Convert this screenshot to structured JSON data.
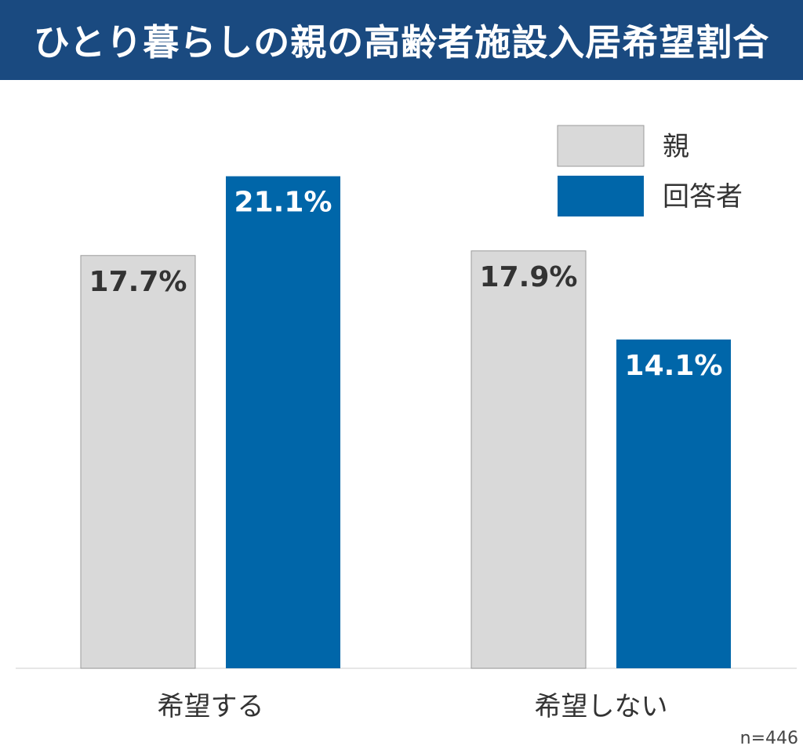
{
  "chart_data": {
    "type": "bar",
    "title": "ひとり暮らしの親の高齢者施設入居希望割合",
    "categories": [
      "希望する",
      "希望しない"
    ],
    "series": [
      {
        "name": "親",
        "values": [
          17.7,
          17.9
        ],
        "color": "#d9d9d9",
        "labels": [
          "17.7%",
          "17.9%"
        ],
        "label_color": "#333333"
      },
      {
        "name": "回答者",
        "values": [
          21.1,
          14.1
        ],
        "color": "#0066a9",
        "labels": [
          "21.1%",
          "14.1%"
        ],
        "label_color": "#ffffff"
      }
    ],
    "unit": "%",
    "legend_position": "top-right",
    "note": "n=446",
    "grid": false
  }
}
